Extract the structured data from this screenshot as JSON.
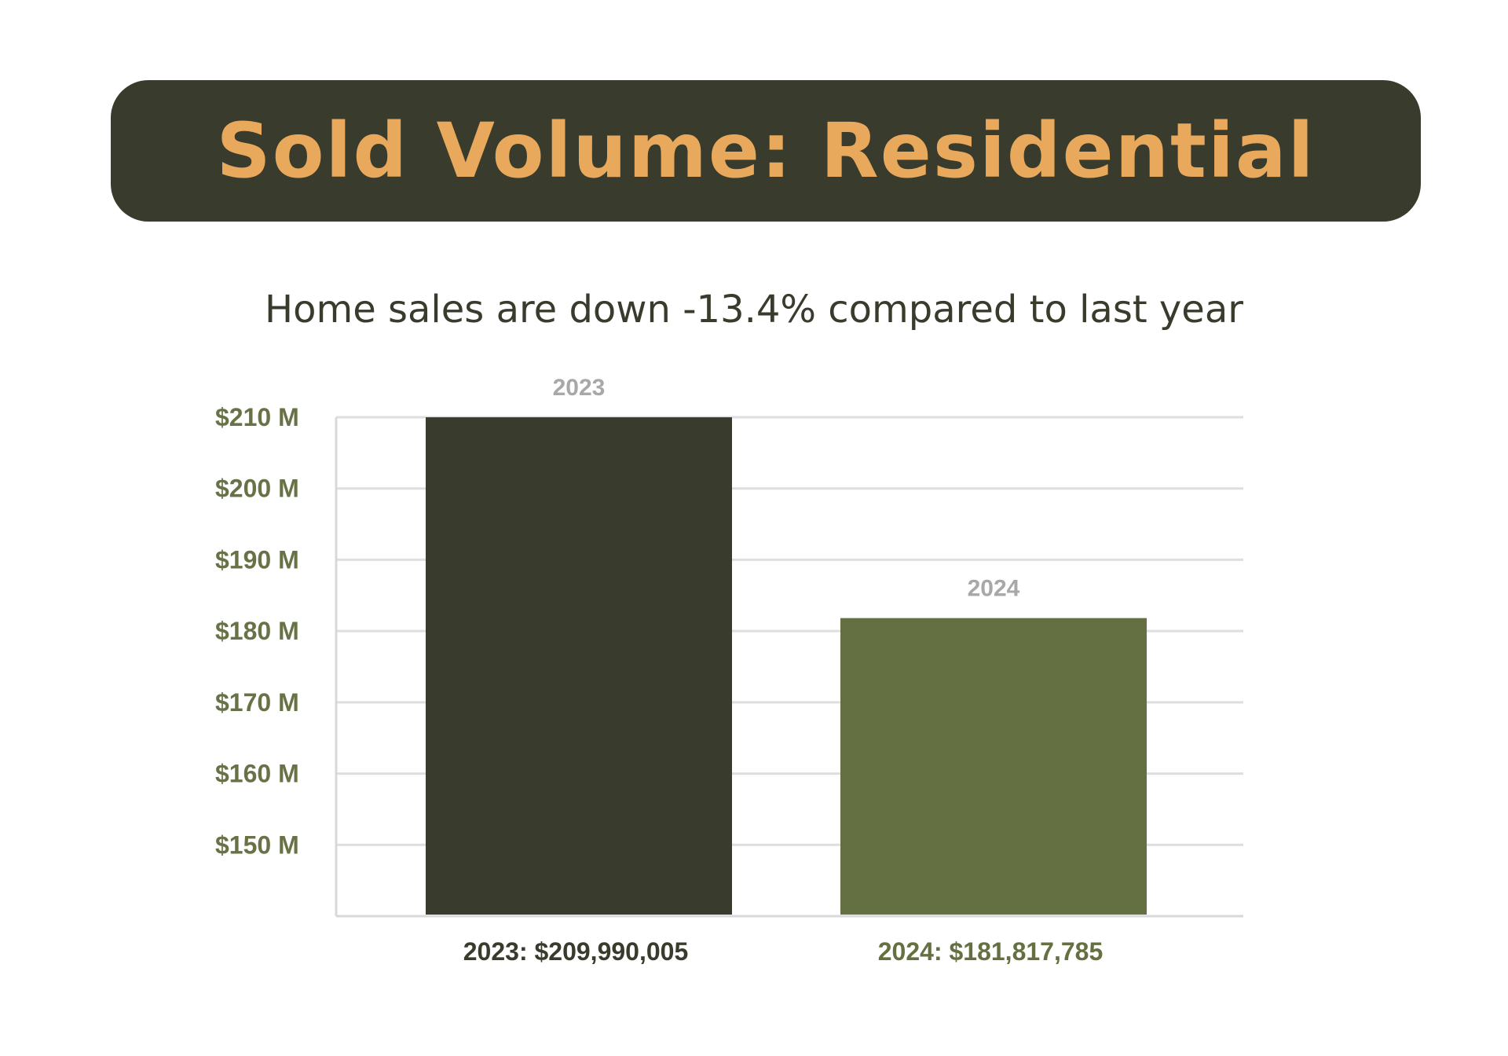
{
  "header": {
    "title": "Sold Volume: Residential"
  },
  "subtitle": "Home sales are down -13.4% compared to last year",
  "colors": {
    "banner_bg": "#393b2c",
    "title_text": "#e9a95c",
    "subtitle_text": "#393b2c",
    "tick_text": "#677346",
    "top_label_text": "#a8a8a8",
    "grid": "#dedede",
    "axis": "#d8d8d8"
  },
  "chart_data": {
    "type": "bar",
    "categories": [
      "2023",
      "2024"
    ],
    "values": [
      209990005,
      181817785
    ],
    "bar_colors": [
      "#393b2c",
      "#647041"
    ],
    "bottom_label_colors": [
      "#393b2c",
      "#647041"
    ],
    "top_labels": [
      "2023",
      "2024"
    ],
    "bottom_labels": [
      "2023: $209,990,005",
      "2024: $181,817,785"
    ],
    "yticks": [
      150000000,
      160000000,
      170000000,
      180000000,
      190000000,
      200000000,
      210000000
    ],
    "ytick_labels": [
      "$150 M",
      "$160 M",
      "$170 M",
      "$180 M",
      "$190 M",
      "$200 M",
      "$210 M"
    ],
    "ylim": [
      140000000,
      210000000
    ],
    "grid": true
  }
}
